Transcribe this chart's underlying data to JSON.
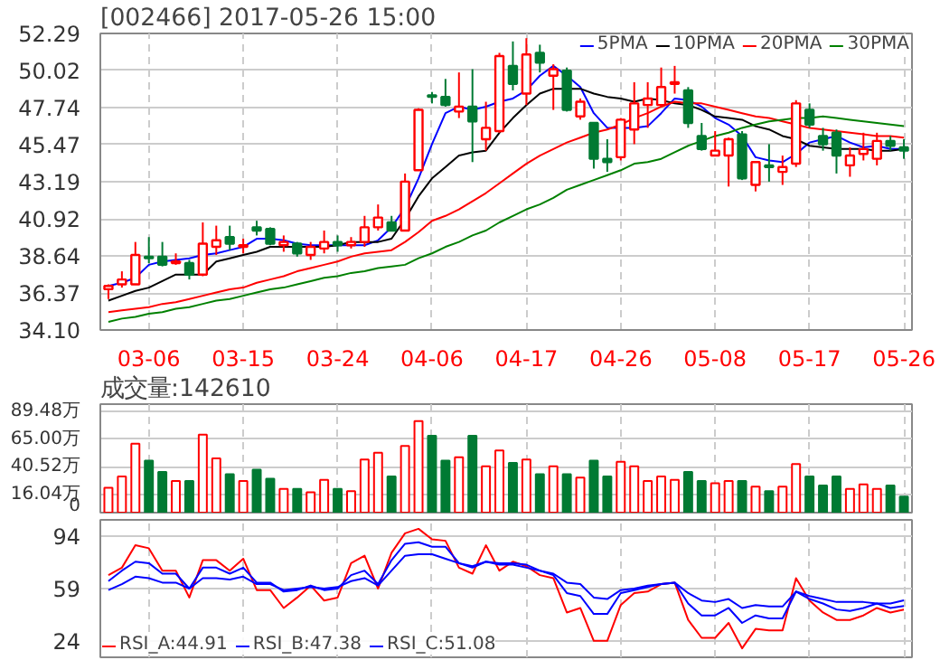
{
  "chart_data": [
    {
      "type": "candlestick",
      "title": "[002466] 2017-05-26 15:00",
      "categories": [
        null,
        null,
        null,
        "03-06",
        null,
        null,
        null,
        null,
        null,
        null,
        "03-15",
        null,
        null,
        null,
        null,
        null,
        null,
        "03-24",
        null,
        null,
        null,
        null,
        null,
        null,
        "04-06",
        null,
        null,
        null,
        null,
        null,
        null,
        "04-17",
        null,
        null,
        null,
        null,
        null,
        null,
        "04-26",
        null,
        null,
        null,
        null,
        null,
        null,
        "05-08",
        null,
        null,
        null,
        null,
        null,
        null,
        "05-17",
        null,
        null,
        null,
        null,
        null,
        null,
        "05-26"
      ],
      "ylim": [
        34.1,
        52.29
      ],
      "yticks": [
        {
          "value": 34.1,
          "label": "34.10"
        },
        36.37,
        38.64,
        40.92,
        43.19,
        45.47,
        47.74,
        50.02,
        52.29
      ],
      "grid": true,
      "legend": "top right",
      "ohlc": [
        [
          36.6,
          36.9,
          36.0,
          36.8
        ],
        [
          36.9,
          37.7,
          36.7,
          37.2
        ],
        [
          36.9,
          39.5,
          36.9,
          38.7
        ],
        [
          38.6,
          39.8,
          38.2,
          38.5
        ],
        [
          38.6,
          39.5,
          38.0,
          38.1
        ],
        [
          38.2,
          38.8,
          38.1,
          38.3
        ],
        [
          38.2,
          38.4,
          37.2,
          37.5
        ],
        [
          37.5,
          40.7,
          37.4,
          39.4
        ],
        [
          39.2,
          40.5,
          38.7,
          39.6
        ],
        [
          39.8,
          40.5,
          39.0,
          39.4
        ],
        [
          39.2,
          39.7,
          38.8,
          39.3
        ],
        [
          40.4,
          40.8,
          39.9,
          40.2
        ],
        [
          40.3,
          40.4,
          39.3,
          39.4
        ],
        [
          39.3,
          39.9,
          38.9,
          39.5
        ],
        [
          39.4,
          39.5,
          38.6,
          38.8
        ],
        [
          38.7,
          39.5,
          38.4,
          39.2
        ],
        [
          39.1,
          40.2,
          38.8,
          39.5
        ],
        [
          39.5,
          39.9,
          38.9,
          39.3
        ],
        [
          39.3,
          39.8,
          39.1,
          39.5
        ],
        [
          39.5,
          41.1,
          39.2,
          40.4
        ],
        [
          40.4,
          41.8,
          40.2,
          41.0
        ],
        [
          40.7,
          41.1,
          40.2,
          40.2
        ],
        [
          40.2,
          43.7,
          40.2,
          43.2
        ],
        [
          43.9,
          47.7,
          43.9,
          47.6
        ],
        [
          48.5,
          48.7,
          48.0,
          48.4
        ],
        [
          48.4,
          49.5,
          47.8,
          47.9
        ],
        [
          47.5,
          49.9,
          47.1,
          47.8
        ],
        [
          47.8,
          50.1,
          44.4,
          46.9
        ],
        [
          45.8,
          48.1,
          45.1,
          46.5
        ],
        [
          46.3,
          51.1,
          46.2,
          50.9
        ],
        [
          50.3,
          51.8,
          48.8,
          49.2
        ],
        [
          48.6,
          52.0,
          47.9,
          51.0
        ],
        [
          51.1,
          51.6,
          49.9,
          50.5
        ],
        [
          49.7,
          50.4,
          47.6,
          50.1
        ],
        [
          50.0,
          50.2,
          47.5,
          47.6
        ],
        [
          47.2,
          48.3,
          47.0,
          48.1
        ],
        [
          46.8,
          46.8,
          44.0,
          44.6
        ],
        [
          44.6,
          45.8,
          43.8,
          44.4
        ],
        [
          44.7,
          47.1,
          44.5,
          47.0
        ],
        [
          46.4,
          49.3,
          45.5,
          48.0
        ],
        [
          47.9,
          49.3,
          46.5,
          48.3
        ],
        [
          47.9,
          50.2,
          47.8,
          49.0
        ],
        [
          49.2,
          50.3,
          48.6,
          49.3
        ],
        [
          48.8,
          49.0,
          46.5,
          46.8
        ],
        [
          46.0,
          46.8,
          45.1,
          45.2
        ],
        [
          44.8,
          46.3,
          44.8,
          45.1
        ],
        [
          44.8,
          45.9,
          42.9,
          45.8
        ],
        [
          46.1,
          46.3,
          43.3,
          43.4
        ],
        [
          43.0,
          44.4,
          42.6,
          44.4
        ],
        [
          44.2,
          45.5,
          43.2,
          44.1
        ],
        [
          43.8,
          44.8,
          43.0,
          44.1
        ],
        [
          44.3,
          48.2,
          44.1,
          48.0
        ],
        [
          47.6,
          48.0,
          46.5,
          46.7
        ],
        [
          46.0,
          46.5,
          45.1,
          45.5
        ],
        [
          46.2,
          46.4,
          43.7,
          44.8
        ],
        [
          44.2,
          45.3,
          43.5,
          44.8
        ],
        [
          44.9,
          46.2,
          44.5,
          45.2
        ],
        [
          44.6,
          46.2,
          44.2,
          45.7
        ],
        [
          45.7,
          46.0,
          45.1,
          45.4
        ],
        [
          45.3,
          45.8,
          44.6,
          45.1
        ]
      ],
      "series": [
        {
          "name": "5PMA",
          "type": "line",
          "color": "#0000ff",
          "values": [
            36.8,
            37.0,
            37.3,
            38.1,
            38.3,
            38.4,
            38.5,
            38.7,
            38.8,
            39.0,
            39.2,
            39.7,
            39.7,
            39.6,
            39.4,
            39.3,
            39.3,
            39.3,
            39.3,
            39.3,
            39.6,
            40.4,
            41.6,
            43.4,
            45.5,
            47.4,
            47.8,
            47.6,
            47.8,
            48.1,
            48.3,
            48.8,
            49.7,
            50.3,
            49.7,
            49.0,
            47.4,
            46.5,
            46.5,
            46.5,
            46.6,
            47.4,
            48.3,
            48.2,
            47.8,
            47.1,
            46.7,
            46.0,
            44.7,
            44.5,
            44.4,
            44.9,
            45.6,
            45.8,
            46.0,
            45.6,
            45.3,
            45.4,
            45.2,
            45.2
          ]
        },
        {
          "name": "10PMA",
          "type": "line",
          "color": "#000000",
          "values": [
            35.9,
            36.2,
            36.5,
            36.7,
            37.1,
            37.5,
            37.5,
            37.5,
            38.3,
            38.5,
            38.7,
            38.9,
            39.2,
            39.2,
            39.2,
            39.2,
            39.2,
            39.3,
            39.5,
            39.5,
            39.5,
            39.7,
            40.9,
            42.3,
            43.4,
            44.1,
            44.8,
            45.0,
            45.1,
            46.2,
            47.1,
            47.9,
            48.6,
            48.9,
            48.9,
            48.9,
            48.6,
            48.4,
            48.3,
            48.1,
            48.3,
            48.2,
            48.0,
            47.9,
            47.6,
            47.2,
            47.1,
            47.0,
            46.6,
            46.4,
            46.0,
            45.8,
            45.4,
            45.3,
            45.2,
            45.2,
            45.2,
            45.1,
            45.1,
            45.2
          ]
        },
        {
          "name": "20PMA",
          "type": "line",
          "color": "#ff0000",
          "values": [
            35.2,
            35.3,
            35.4,
            35.5,
            35.7,
            35.8,
            36.0,
            36.2,
            36.4,
            36.6,
            36.7,
            37.0,
            37.2,
            37.4,
            37.7,
            37.9,
            38.1,
            38.3,
            38.6,
            38.8,
            38.9,
            39.0,
            39.5,
            40.1,
            40.8,
            41.1,
            41.5,
            42.0,
            42.5,
            43.1,
            43.7,
            44.3,
            44.8,
            45.2,
            45.6,
            45.9,
            46.2,
            46.4,
            46.7,
            47.1,
            47.4,
            47.8,
            48.1,
            48.0,
            48.0,
            47.8,
            47.6,
            47.4,
            47.2,
            47.1,
            46.9,
            46.7,
            46.5,
            46.4,
            46.3,
            46.2,
            46.1,
            46.0,
            46.0,
            45.9
          ]
        },
        {
          "name": "30PMA",
          "type": "line",
          "color": "#008000",
          "values": [
            34.6,
            34.8,
            34.9,
            35.1,
            35.2,
            35.4,
            35.5,
            35.7,
            35.9,
            36.0,
            36.2,
            36.4,
            36.6,
            36.7,
            36.9,
            37.1,
            37.3,
            37.4,
            37.6,
            37.7,
            37.9,
            38.0,
            38.1,
            38.5,
            38.8,
            39.2,
            39.5,
            39.9,
            40.2,
            40.7,
            41.1,
            41.5,
            41.8,
            42.2,
            42.7,
            43.0,
            43.3,
            43.6,
            43.9,
            44.3,
            44.4,
            44.6,
            45.0,
            45.4,
            45.7,
            46.0,
            46.2,
            46.5,
            46.7,
            46.9,
            47.0,
            47.1,
            47.1,
            47.2,
            47.1,
            47.0,
            46.9,
            46.8,
            46.7,
            46.6
          ]
        }
      ]
    },
    {
      "type": "bar",
      "title": "成交量:142610",
      "tick_labels": "y",
      "grid": true,
      "categories": [
        null,
        null,
        null,
        null,
        null,
        null,
        null,
        null,
        null,
        null,
        null,
        null,
        null,
        null,
        null,
        null,
        null,
        null,
        null,
        null,
        null,
        null,
        null,
        null,
        null,
        null,
        null,
        null,
        null,
        null,
        null,
        null,
        null,
        null,
        null,
        null,
        null,
        null,
        null,
        null,
        null,
        null,
        null,
        null,
        null,
        null,
        null,
        null,
        null,
        null,
        null,
        null,
        null,
        null,
        null,
        null,
        null,
        null,
        null,
        null
      ],
      "ylim": [
        0,
        96
      ],
      "yticks": [
        0,
        {
          "value": 16.04,
          "label": "16.04万"
        },
        {
          "value": 40.52,
          "label": "40.52万"
        },
        {
          "value": 65.0,
          "label": "65.00万"
        },
        {
          "value": 89.48,
          "label": "89.48万"
        }
      ],
      "values": [
        22,
        32,
        61,
        46,
        36,
        28,
        28,
        69,
        48,
        34,
        28,
        38,
        30,
        21,
        21,
        18,
        29,
        21,
        19,
        47,
        53,
        32,
        59,
        81,
        68,
        46,
        49,
        68,
        41,
        55,
        44,
        47,
        34,
        41,
        34,
        31,
        46,
        32,
        45,
        41,
        28,
        32,
        29,
        36,
        28,
        26,
        28,
        28,
        23,
        19,
        23,
        43,
        32,
        24,
        32,
        21,
        25,
        21,
        24,
        14.26
      ],
      "colors": [
        "#ff0000",
        "#ff0000",
        "#ff0000",
        "#007a33",
        "#007a33",
        "#ff0000",
        "#007a33",
        "#ff0000",
        "#ff0000",
        "#007a33",
        "#ff0000",
        "#007a33",
        "#007a33",
        "#ff0000",
        "#007a33",
        "#ff0000",
        "#ff0000",
        "#007a33",
        "#ff0000",
        "#ff0000",
        "#ff0000",
        "#007a33",
        "#ff0000",
        "#ff0000",
        "#007a33",
        "#007a33",
        "#ff0000",
        "#007a33",
        "#ff0000",
        "#ff0000",
        "#007a33",
        "#ff0000",
        "#007a33",
        "#ff0000",
        "#007a33",
        "#ff0000",
        "#007a33",
        "#007a33",
        "#ff0000",
        "#ff0000",
        "#ff0000",
        "#ff0000",
        "#ff0000",
        "#007a33",
        "#007a33",
        "#ff0000",
        "#ff0000",
        "#007a33",
        "#ff0000",
        "#007a33",
        "#ff0000",
        "#ff0000",
        "#007a33",
        "#007a33",
        "#007a33",
        "#ff0000",
        "#ff0000",
        "#ff0000",
        "#007a33",
        "#007a33"
      ]
    },
    {
      "type": "line",
      "tick_labels": "y",
      "grid": true,
      "legend": "bottom left",
      "categories": [
        null,
        null,
        null,
        null,
        null,
        null,
        null,
        null,
        null,
        null,
        null,
        null,
        null,
        null,
        null,
        null,
        null,
        null,
        null,
        null,
        null,
        null,
        null,
        null,
        null,
        null,
        null,
        null,
        null,
        null,
        null,
        null,
        null,
        null,
        null,
        null,
        null,
        null,
        null,
        null,
        null,
        null,
        null,
        null,
        null,
        null,
        null,
        null,
        null,
        null,
        null,
        null,
        null,
        null,
        null,
        null,
        null,
        null,
        null,
        null
      ],
      "ylim": [
        13,
        105
      ],
      "yticks": [
        24,
        59,
        94
      ],
      "series": [
        {
          "name": "RSI_A:44.91",
          "color": "#ff0000",
          "values": [
            68,
            73,
            88,
            86,
            71,
            71,
            53,
            78,
            78,
            71,
            79,
            58,
            58,
            46,
            53,
            61,
            51,
            53,
            76,
            81,
            59,
            83,
            96,
            99,
            92,
            91,
            73,
            69,
            88,
            71,
            77,
            74,
            68,
            66,
            43,
            46,
            24,
            24,
            48,
            56,
            57,
            62,
            63,
            38,
            26,
            26,
            36,
            19,
            32,
            31,
            31,
            66,
            51,
            43,
            38,
            38,
            41,
            46,
            43,
            44.91
          ]
        },
        {
          "name": "RSI_B:47.38",
          "color": "#0000ff",
          "values": [
            64,
            71,
            77,
            76,
            69,
            69,
            59,
            73,
            73,
            69,
            73,
            63,
            63,
            57,
            58,
            61,
            58,
            59,
            68,
            71,
            62,
            78,
            89,
            90,
            87,
            87,
            76,
            73,
            77,
            76,
            76,
            75,
            71,
            68,
            56,
            54,
            42,
            42,
            56,
            58,
            60,
            62,
            63,
            49,
            41,
            41,
            46,
            36,
            41,
            39,
            39,
            57,
            52,
            49,
            45,
            44,
            46,
            49,
            46,
            47.38
          ]
        },
        {
          "name": "RSI_C:51.08",
          "color": "#0000ff",
          "values": [
            58,
            62,
            67,
            66,
            63,
            63,
            59,
            66,
            66,
            65,
            67,
            62,
            62,
            58,
            59,
            60,
            59,
            60,
            64,
            66,
            61,
            71,
            81,
            82,
            82,
            79,
            76,
            74,
            77,
            75,
            75,
            73,
            71,
            69,
            63,
            62,
            53,
            52,
            58,
            59,
            61,
            62,
            63,
            56,
            51,
            50,
            52,
            46,
            48,
            47,
            47,
            57,
            54,
            52,
            50,
            50,
            50,
            49,
            49,
            51.08
          ]
        }
      ]
    }
  ]
}
